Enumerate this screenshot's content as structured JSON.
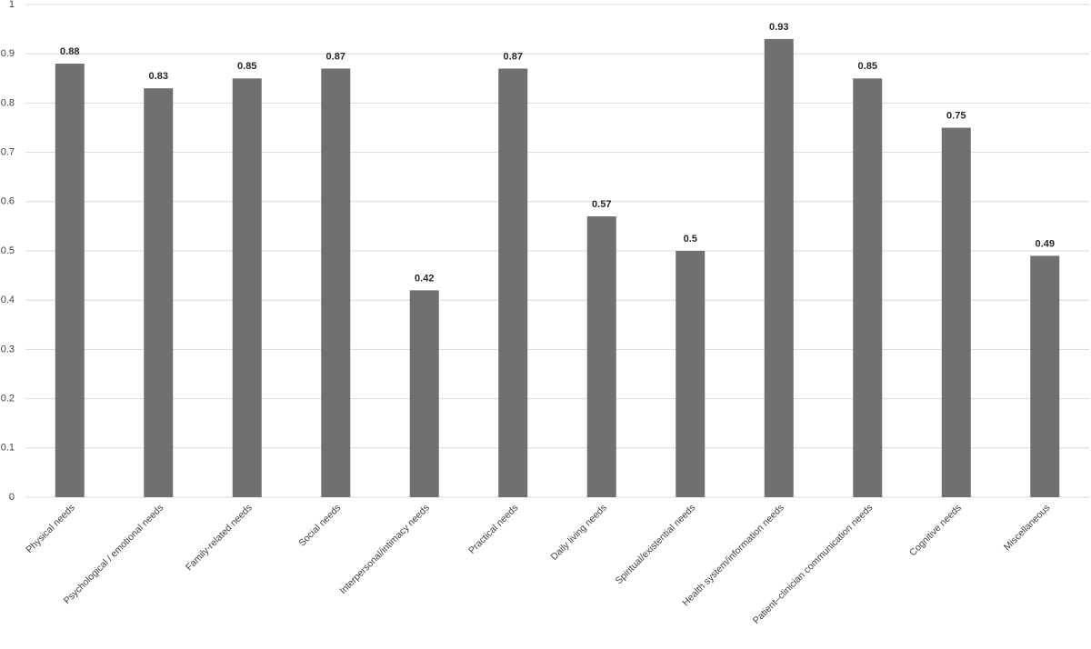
{
  "chart_data": {
    "type": "bar",
    "categories": [
      "Physical needs",
      "Psychological / emotional needs",
      "Family-related needs",
      "Social needs",
      "Interpersonal/intimacy needs",
      "Practical needs",
      "Daily living needs",
      "Spiritual/existential needs",
      "Health system/information needs",
      "Patient–clinician communication needs",
      "Cognitive needs",
      "Miscellaneous"
    ],
    "values": [
      0.88,
      0.83,
      0.85,
      0.87,
      0.42,
      0.87,
      0.57,
      0.5,
      0.93,
      0.85,
      0.75,
      0.49
    ],
    "color": "#707070",
    "ylim": [
      0,
      1
    ],
    "yticks": [
      0,
      0.1,
      0.2,
      0.3,
      0.4,
      0.5,
      0.6,
      0.7,
      0.8,
      0.9,
      1
    ],
    "grid": true
  }
}
